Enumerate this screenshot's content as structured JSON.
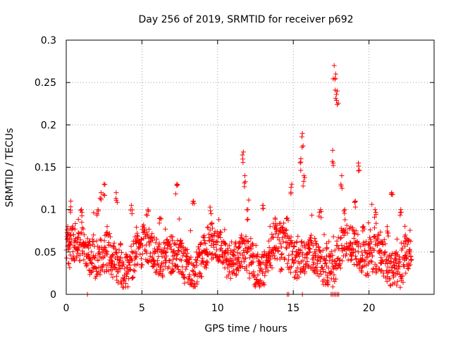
{
  "chart_data": {
    "type": "scatter",
    "title": "Day 256 of 2019, SRMTID for receiver p692",
    "xlabel": "GPS time / hours",
    "ylabel": "SRMTID / TECUs",
    "xlim": [
      0,
      24.3
    ],
    "ylim": [
      0,
      0.3
    ],
    "x_ticks": [
      0,
      5,
      10,
      15,
      20
    ],
    "x_tick_labels": [
      "0",
      "5",
      "10",
      "15",
      "20"
    ],
    "y_ticks": [
      0,
      0.05,
      0.1,
      0.15,
      0.2,
      0.25,
      0.3
    ],
    "y_tick_labels": [
      "0",
      "0.05",
      "0.1",
      "0.15",
      "0.2",
      "0.25",
      "0.3"
    ],
    "grid": true,
    "marker": "+",
    "color": "#ff0000",
    "series": [
      {
        "name": "SRMTID",
        "x_range": [
          0,
          22.8
        ],
        "baseline_range": [
          0.02,
          0.09
        ],
        "background_sample": [
          [
            0.1,
            0.08
          ],
          [
            0.2,
            0.065
          ],
          [
            0.3,
            0.11
          ],
          [
            0.5,
            0.045
          ],
          [
            0.8,
            0.055
          ],
          [
            1.0,
            0.1
          ],
          [
            1.2,
            0.06
          ],
          [
            1.5,
            0.045
          ],
          [
            1.8,
            0.07
          ],
          [
            2.1,
            0.1
          ],
          [
            2.3,
            0.12
          ],
          [
            2.5,
            0.13
          ],
          [
            2.7,
            0.08
          ],
          [
            3.0,
            0.04
          ],
          [
            3.3,
            0.12
          ],
          [
            3.6,
            0.06
          ],
          [
            4.0,
            0.045
          ],
          [
            4.3,
            0.105
          ],
          [
            4.6,
            0.05
          ],
          [
            5.0,
            0.035
          ],
          [
            5.4,
            0.1
          ],
          [
            5.8,
            0.04
          ],
          [
            6.2,
            0.09
          ],
          [
            6.6,
            0.05
          ],
          [
            7.0,
            0.03
          ],
          [
            7.3,
            0.13
          ],
          [
            7.6,
            0.06
          ],
          [
            8.0,
            0.04
          ],
          [
            8.4,
            0.11
          ],
          [
            8.8,
            0.05
          ],
          [
            9.2,
            0.035
          ],
          [
            9.6,
            0.07
          ],
          [
            10.0,
            0.045
          ],
          [
            10.5,
            0.05
          ],
          [
            11.0,
            0.04
          ],
          [
            11.4,
            0.06
          ],
          [
            11.7,
            0.168
          ],
          [
            11.8,
            0.14
          ],
          [
            12.0,
            0.1
          ],
          [
            12.3,
            0.06
          ],
          [
            12.7,
            0.04
          ],
          [
            13.0,
            0.105
          ],
          [
            13.4,
            0.05
          ],
          [
            13.8,
            0.09
          ],
          [
            14.2,
            0.03
          ],
          [
            14.6,
            0.09
          ],
          [
            14.9,
            0.13
          ],
          [
            15.2,
            0.05
          ],
          [
            15.5,
            0.16
          ],
          [
            15.6,
            0.19
          ],
          [
            15.7,
            0.14
          ],
          [
            16.0,
            0.06
          ],
          [
            16.4,
            0.05
          ],
          [
            16.8,
            0.1
          ],
          [
            17.2,
            0.06
          ],
          [
            17.6,
            0.17
          ],
          [
            17.7,
            0.27
          ],
          [
            17.8,
            0.26
          ],
          [
            17.9,
            0.24
          ],
          [
            18.2,
            0.14
          ],
          [
            18.4,
            0.1
          ],
          [
            18.8,
            0.06
          ],
          [
            19.1,
            0.11
          ],
          [
            19.3,
            0.155
          ],
          [
            19.6,
            0.08
          ],
          [
            20.0,
            0.06
          ],
          [
            20.4,
            0.1
          ],
          [
            20.8,
            0.04
          ],
          [
            21.2,
            0.08
          ],
          [
            21.5,
            0.12
          ],
          [
            21.8,
            0.05
          ],
          [
            22.1,
            0.1
          ],
          [
            22.4,
            0.07
          ],
          [
            22.7,
            0.05
          ]
        ],
        "zero_values_at": [
          1.4,
          14.6,
          14.7,
          15.6,
          17.5,
          17.6,
          17.7,
          17.8,
          17.9,
          18.0
        ]
      }
    ]
  }
}
